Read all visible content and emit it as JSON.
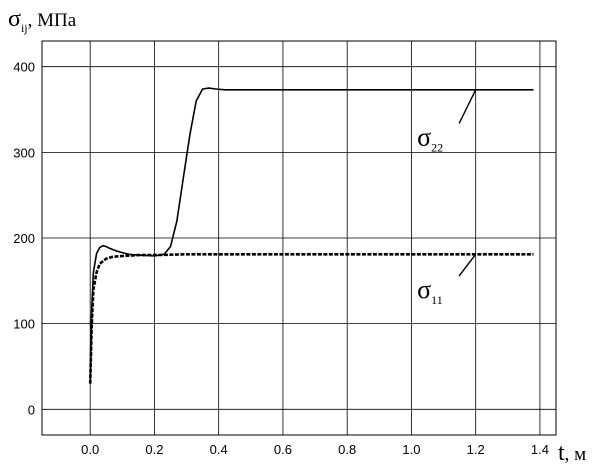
{
  "chart_data": {
    "type": "line",
    "title": "",
    "ylabel": {
      "symbol": "σ",
      "subscript": "ij",
      "unit": ", МПа"
    },
    "xlabel": {
      "symbol": "t",
      "unit": ", м"
    },
    "xlim": [
      -0.15,
      1.45
    ],
    "ylim": [
      -30,
      430
    ],
    "xticks": [
      0.0,
      0.2,
      0.4,
      0.6,
      0.8,
      1.0,
      1.2,
      1.4
    ],
    "xtick_labels": [
      "0.0",
      "0.2",
      "0.4",
      "0.6",
      "0.8",
      "1.0",
      "1.2",
      "1.4"
    ],
    "yticks": [
      0,
      100,
      200,
      300,
      400
    ],
    "ytick_labels": [
      "0",
      "100",
      "200",
      "300",
      "400"
    ],
    "grid": true,
    "legend": "none",
    "series": [
      {
        "label_symbol": "σ",
        "label_subscript": "22",
        "style": "solid",
        "color": "#000000",
        "x": [
          0.0,
          0.005,
          0.01,
          0.02,
          0.03,
          0.04,
          0.05,
          0.06,
          0.08,
          0.1,
          0.12,
          0.15,
          0.2,
          0.23,
          0.25,
          0.27,
          0.29,
          0.31,
          0.33,
          0.35,
          0.37,
          0.39,
          0.42,
          0.45,
          0.6,
          0.8,
          1.0,
          1.2,
          1.38
        ],
        "y": [
          30,
          120,
          160,
          182,
          189,
          191,
          190,
          188,
          185,
          183,
          181,
          180,
          179,
          181,
          190,
          220,
          270,
          320,
          360,
          374,
          375,
          374,
          373,
          373,
          373,
          373,
          373,
          373,
          373
        ]
      },
      {
        "label_symbol": "σ",
        "label_subscript": "11",
        "style": "dashed",
        "color": "#000000",
        "x": [
          0.0,
          0.005,
          0.01,
          0.02,
          0.03,
          0.05,
          0.07,
          0.1,
          0.15,
          0.2,
          0.3,
          0.4,
          0.6,
          0.8,
          1.0,
          1.2,
          1.38
        ],
        "y": [
          30,
          100,
          140,
          160,
          170,
          176,
          178,
          179,
          180,
          180,
          181,
          181,
          181,
          181,
          181,
          181,
          181
        ]
      }
    ],
    "annotations": [
      {
        "series": 0,
        "text_x": 1.08,
        "text_y": 308,
        "point_x": 1.2,
        "point_y": 373
      },
      {
        "series": 1,
        "text_x": 1.08,
        "text_y": 130,
        "point_x": 1.2,
        "point_y": 181
      }
    ]
  }
}
